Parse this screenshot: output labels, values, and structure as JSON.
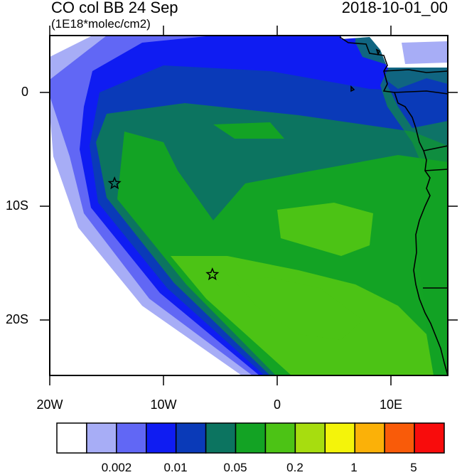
{
  "header": {
    "title": "CO col BB 24 Sep",
    "units": "(1E18*molec/cm2)",
    "datetime": "2018-10-01_00"
  },
  "map": {
    "lat_labels": [
      "0",
      "10S",
      "20S"
    ],
    "lon_labels": [
      "20W",
      "10W",
      "0",
      "10E"
    ],
    "markers": [
      {
        "name": "star-marker-1",
        "lon": -14.3,
        "lat": -8.0
      },
      {
        "name": "star-marker-2",
        "lon": -5.7,
        "lat": -16.0
      }
    ]
  },
  "colorbar": {
    "colors": [
      "#ffffff",
      "#a7adf6",
      "#6167f5",
      "#0f1cf2",
      "#0a3ab8",
      "#0c7460",
      "#13a324",
      "#4cc315",
      "#a7dd0f",
      "#f4f40a",
      "#fbb108",
      "#f95b09",
      "#f80c0c"
    ],
    "labels": [
      "0.002",
      "0.01",
      "0.05",
      "0.2",
      "1",
      "5"
    ]
  }
}
